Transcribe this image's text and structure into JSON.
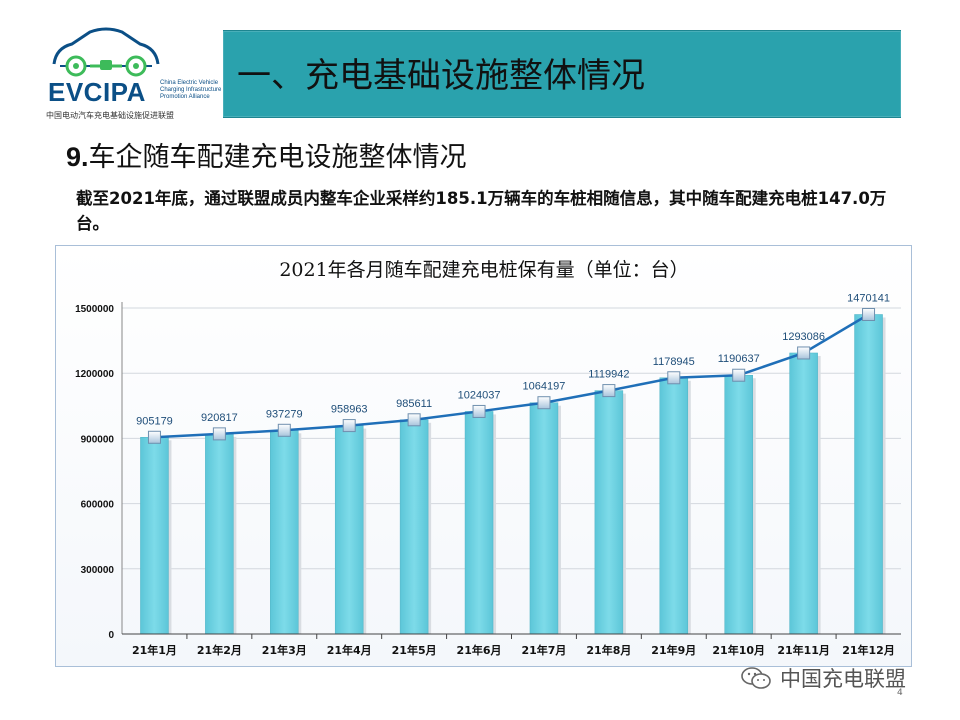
{
  "logo": {
    "name": "EVCIPA",
    "english": [
      "China Electric Vehicle",
      "Charging Infrastructure",
      "Promotion Alliance"
    ],
    "chinese": "中国电动汽车充电基础设施促进联盟"
  },
  "section_title": "一、充电基础设施整体情况",
  "subtitle_number": "9.",
  "subtitle_text": "车企随车配建充电设施整体情况",
  "paragraph": "截至2021年底，通过联盟成员内整车企业采样约185.1万辆车的车桩相随信息，其中随车配建充电桩147.0万台。",
  "watermark": "中国充电联盟",
  "page_number": "4",
  "colors": {
    "banner": "#2aa2ad",
    "bar": "#6fd3e3",
    "line": "#1f6fb8"
  },
  "chart_data": {
    "type": "bar",
    "title": "2021年各月随车配建充电桩保有量（单位：台）",
    "categories": [
      "21年1月",
      "21年2月",
      "21年3月",
      "21年4月",
      "21年5月",
      "21年6月",
      "21年7月",
      "21年8月",
      "21年9月",
      "21年10月",
      "21年11月",
      "21年12月"
    ],
    "series": [
      {
        "type": "bar",
        "values": [
          905179,
          920817,
          937279,
          958963,
          985611,
          1024037,
          1064197,
          1119942,
          1178945,
          1190637,
          1293086,
          1470141
        ]
      },
      {
        "type": "line",
        "values": [
          905179,
          920817,
          937279,
          958963,
          985611,
          1024037,
          1064197,
          1119942,
          1178945,
          1190637,
          1293086,
          1470141
        ]
      }
    ],
    "data_labels": [
      "905179",
      "920817",
      "937279",
      "958963",
      "985611",
      "1024037",
      "1064197",
      "1119942",
      "1178945",
      "1190637",
      "1293086",
      "1470141"
    ],
    "yticks": [
      "0",
      "300000",
      "600000",
      "900000",
      "1200000",
      "1500000"
    ],
    "ytick_values": [
      0,
      300000,
      600000,
      900000,
      1200000,
      1500000
    ],
    "ylim": [
      0,
      1500000
    ],
    "grid": true,
    "legend": "none"
  }
}
